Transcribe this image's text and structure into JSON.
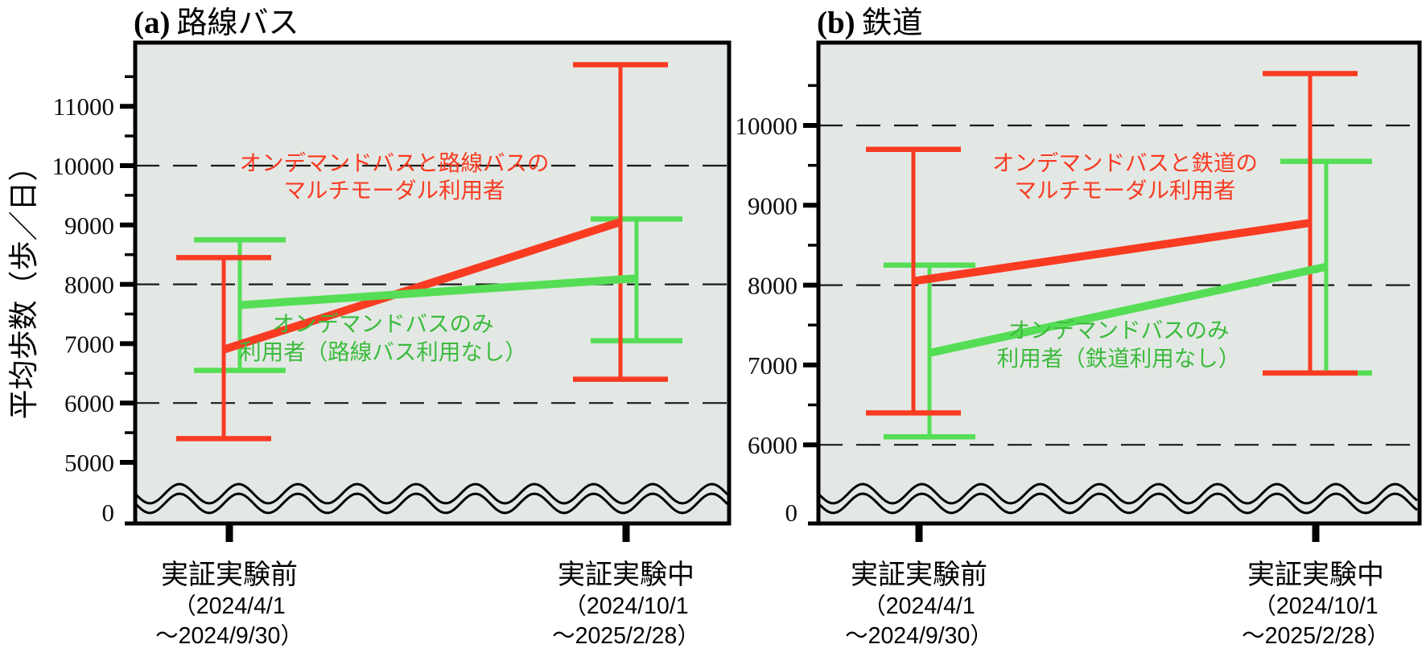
{
  "figure": {
    "y_axis_label": "平均歩数（歩／日）",
    "zero_label": "0",
    "axis_break": true
  },
  "colors": {
    "red_series": "#f93b22",
    "green_series": "#55de55",
    "green_text": "#3cbb3c",
    "red_text": "#f93b22",
    "plot_background": "#e3e8e5",
    "axis_black": "#000000",
    "gridline": "#1a1a1a"
  },
  "x_categories": [
    {
      "name": "before",
      "label": "実証実験前",
      "date_line1": "（2024/4/1",
      "date_line2": "～2024/9/30）"
    },
    {
      "name": "during",
      "label": "実証実験中",
      "date_line1": "（2024/10/1",
      "date_line2": "～2025/2/28）"
    }
  ],
  "chart_data": [
    {
      "id": "a",
      "type": "line",
      "title_tag": "(a)",
      "title": "路線バス",
      "ylabel": "平均歩数（歩／日）",
      "categories": [
        "実証実験前（2024/4/1～2024/9/30）",
        "実証実験中（2024/10/1～2025/2/28）"
      ],
      "yticks": [
        5000,
        6000,
        7000,
        8000,
        9000,
        10000,
        11000
      ],
      "minor_yticks": [
        5500,
        6500,
        7500,
        8500,
        9500,
        10500,
        11500
      ],
      "dashed_gridlines": [
        6000,
        8000,
        10000
      ],
      "ylim": [
        0,
        12100
      ],
      "grid": "dashed-horizontal",
      "legend_position": "inline-annotations",
      "series": [
        {
          "name": "オンデマンドバスと路線バスのマルチモーダル利用者",
          "color_key": "red_series",
          "values": [
            6900,
            9050
          ],
          "err_low": [
            5400,
            6400
          ],
          "err_high": [
            8450,
            11700
          ],
          "label_lines": [
            "オンデマンドバスと路線バスの",
            "マルチモーダル利用者"
          ]
        },
        {
          "name": "オンデマンドバスのみ利用者（路線バス利用なし）",
          "color_key": "green_series",
          "values": [
            7650,
            8100
          ],
          "err_low": [
            6550,
            7050
          ],
          "err_high": [
            8750,
            9100
          ],
          "label_lines": [
            "オンデマンドバスのみ",
            "利用者（路線バス利用なし）"
          ]
        }
      ]
    },
    {
      "id": "b",
      "type": "line",
      "title_tag": "(b)",
      "title": "鉄道",
      "ylabel": "平均歩数（歩／日）",
      "categories": [
        "実証実験前（2024/4/1～2024/9/30）",
        "実証実験中（2024/10/1～2025/2/28）"
      ],
      "yticks": [
        6000,
        7000,
        8000,
        9000,
        10000
      ],
      "minor_yticks": [
        6500,
        7500,
        8500,
        9500,
        10500
      ],
      "dashed_gridlines": [
        6000,
        8000,
        10000
      ],
      "ylim": [
        0,
        11050
      ],
      "grid": "dashed-horizontal",
      "legend_position": "inline-annotations",
      "series": [
        {
          "name": "オンデマンドバスと鉄道のマルチモーダル利用者",
          "color_key": "red_series",
          "values": [
            8050,
            8780
          ],
          "err_low": [
            6400,
            6900
          ],
          "err_high": [
            9700,
            10650
          ],
          "label_lines": [
            "オンデマンドバスと鉄道の",
            "マルチモーダル利用者"
          ]
        },
        {
          "name": "オンデマンドバスのみ利用者（鉄道利用なし）",
          "color_key": "green_series",
          "values": [
            7150,
            8230
          ],
          "err_low": [
            6100,
            6900
          ],
          "err_high": [
            8250,
            9550
          ],
          "label_lines": [
            "オンデマンドバスのみ",
            "利用者（鉄道利用なし）"
          ]
        }
      ]
    }
  ]
}
